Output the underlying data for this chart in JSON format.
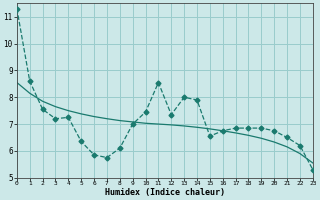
{
  "xlabel": "Humidex (Indice chaleur)",
  "ylabel": "",
  "line1_x": [
    0,
    1,
    2,
    3,
    4,
    5,
    6,
    7,
    8,
    9,
    10,
    11,
    12,
    13,
    14,
    15,
    16,
    17,
    18,
    19,
    20,
    21,
    22,
    23
  ],
  "line1_y": [
    11.3,
    8.6,
    7.55,
    7.2,
    7.25,
    6.35,
    5.85,
    5.75,
    6.1,
    7.0,
    7.45,
    8.55,
    7.35,
    8.0,
    7.9,
    6.55,
    6.75,
    6.85,
    6.85,
    6.85,
    6.75,
    6.5,
    6.2,
    5.3
  ],
  "line2_x": [
    0,
    1,
    2,
    3,
    4,
    5,
    6,
    7,
    8,
    9,
    10,
    11,
    12,
    13,
    14,
    15,
    16,
    17,
    18,
    19,
    20,
    21,
    22,
    23
  ],
  "line2_y": [
    8.55,
    8.15,
    7.85,
    7.65,
    7.5,
    7.38,
    7.28,
    7.2,
    7.13,
    7.08,
    7.03,
    7.0,
    6.97,
    6.93,
    6.88,
    6.82,
    6.75,
    6.67,
    6.58,
    6.47,
    6.33,
    6.15,
    5.9,
    5.55
  ],
  "line_color": "#1a7a6e",
  "bg_color": "#cce8e8",
  "grid_color": "#99cccc",
  "xlim": [
    0,
    23
  ],
  "ylim": [
    5,
    11.5
  ],
  "yticks": [
    5,
    6,
    7,
    8,
    9,
    10,
    11
  ],
  "xticks": [
    0,
    1,
    2,
    3,
    4,
    5,
    6,
    7,
    8,
    9,
    10,
    11,
    12,
    13,
    14,
    15,
    16,
    17,
    18,
    19,
    20,
    21,
    22,
    23
  ]
}
